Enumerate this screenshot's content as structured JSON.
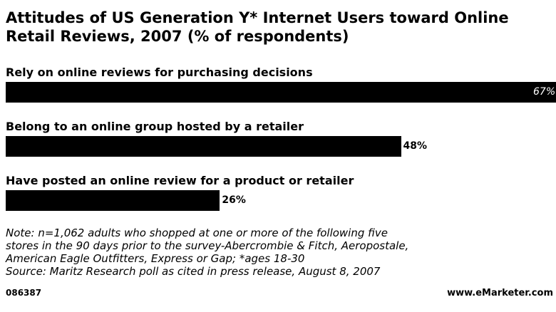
{
  "chart_data": {
    "type": "bar",
    "orientation": "horizontal",
    "title": "Attitudes of US Generation Y* Internet Users toward Online Retail Reviews, 2007 (% of respondents)",
    "categories": [
      "Rely on online reviews for purchasing decisions",
      "Belong to an online group hosted by a retailer",
      "Have posted an online review for a product or retailer"
    ],
    "values": [
      67,
      48,
      26
    ],
    "value_labels": [
      "67%",
      "48%",
      "26%"
    ],
    "color": "#000000",
    "note": [
      "Note: n=1,062 adults who shopped at one or more of the following five",
      "stores in the 90 days prior to the survey-Abercrombie & Fitch, Aeropostale,",
      "American Eagle Outfitters, Express or Gap; *ages 18-30",
      "Source: Maritz Research poll as cited in press release, August 8, 2007"
    ],
    "id": "086387",
    "brand": "www.eMarketer.com"
  }
}
